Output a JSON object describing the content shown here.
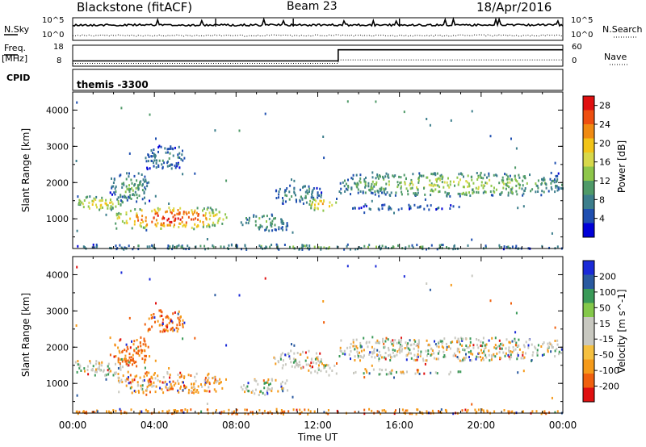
{
  "header": {
    "title": "Blackstone (fitACF)",
    "beam": "Beam 23",
    "date": "18/Apr/2016"
  },
  "summary": {
    "nsky_label": "N.Sky",
    "nsearch_label": "N.Search",
    "freq_label": "Freq.",
    "freq_unit": "[MHz]",
    "nave_label": "Nave",
    "cpid_label": "CPID",
    "cpid_value": "themis -3300",
    "noise_ticks": [
      "10^5",
      "10^0"
    ],
    "freq_ticks": [
      "18",
      "8"
    ],
    "nave_ticks": [
      "60",
      "0"
    ]
  },
  "colors": {
    "power_scale": [
      "#0000d8",
      "#1f4fb0",
      "#3c7e8c",
      "#4f9a68",
      "#8ec64a",
      "#d7d84a",
      "#f2c418",
      "#f08a12",
      "#ee4f10",
      "#e01010"
    ],
    "velocity_scale": [
      "#e01010",
      "#f0600e",
      "#f59a1a",
      "#f5c040",
      "#c8c8c0",
      "#c8c8c0",
      "#84c84a",
      "#3a9a58",
      "#2a5aa0",
      "#1a2ad8"
    ],
    "gray": "#c8c8c0"
  },
  "chart_data": [
    {
      "type": "line",
      "title": "Noise (N.Sky, N.Search)",
      "x": [
        0,
        24
      ],
      "series": [
        {
          "name": "N.Sky",
          "style": "solid",
          "level": "near 10^5 with spikes"
        },
        {
          "name": "N.Search",
          "style": "dotted",
          "level": "near 10^0"
        }
      ]
    },
    {
      "type": "line",
      "title": "Freq. / Nave",
      "series": [
        {
          "name": "Freq. [MHz]",
          "x": [
            0,
            13,
            13,
            24
          ],
          "values": [
            10.5,
            10.5,
            15.8,
            15.8
          ],
          "ylim": [
            8,
            18
          ]
        },
        {
          "name": "Nave",
          "style": "dotted",
          "x": [
            0,
            13,
            13,
            24
          ],
          "values": [
            8,
            8,
            18,
            18
          ],
          "ylim": [
            0,
            60
          ]
        }
      ]
    },
    {
      "type": "heatmap",
      "title": "Power",
      "xlabel": "",
      "ylabel": "Slant Range [km]",
      "xlim": [
        0,
        24
      ],
      "ylim": [
        180,
        4500
      ],
      "yticks": [
        1000,
        2000,
        3000,
        4000
      ],
      "colorbar": {
        "label": "Power [dB]",
        "ticks": [
          4,
          8,
          12,
          16,
          20,
          24,
          28
        ],
        "range": [
          0,
          30
        ]
      },
      "echo_regions": [
        {
          "x": [
            0,
            2.5
          ],
          "y": [
            1250,
            1650
          ],
          "value": 14
        },
        {
          "x": [
            1.8,
            3.8
          ],
          "y": [
            1500,
            2300
          ],
          "value": 8
        },
        {
          "x": [
            2.0,
            7.5
          ],
          "y": [
            750,
            1350
          ],
          "value": 20
        },
        {
          "x": [
            3.5,
            5.5
          ],
          "y": [
            2400,
            3050
          ],
          "value": 6
        },
        {
          "x": [
            8.2,
            10.5
          ],
          "y": [
            700,
            1150
          ],
          "value": 9
        },
        {
          "x": [
            9.8,
            12.2
          ],
          "y": [
            1450,
            1950
          ],
          "value": 7
        },
        {
          "x": [
            11.5,
            12.9
          ],
          "y": [
            1250,
            1600
          ],
          "value": 16
        },
        {
          "x": [
            13.0,
            24.0
          ],
          "y": [
            1650,
            2300
          ],
          "value": 11
        },
        {
          "x": [
            13.5,
            19.0
          ],
          "y": [
            1280,
            1420
          ],
          "value": 5
        },
        {
          "x": [
            0,
            24
          ],
          "y": [
            180,
            320
          ],
          "value": 8
        }
      ]
    },
    {
      "type": "heatmap",
      "title": "Velocity",
      "xlabel": "Time UT",
      "ylabel": "Slant Range [km]",
      "xlim": [
        0,
        24
      ],
      "ylim": [
        180,
        4500
      ],
      "xticks": [
        "00:00",
        "04:00",
        "08:00",
        "12:00",
        "16:00",
        "20:00",
        "00:00"
      ],
      "yticks": [
        1000,
        2000,
        3000,
        4000
      ],
      "colorbar": {
        "label": "Velocity [m s^-1]",
        "ticks": [
          200,
          100,
          50,
          15,
          -15,
          -50,
          -100,
          -200
        ]
      },
      "echo_regions": [
        {
          "x": [
            0,
            2.5
          ],
          "y": [
            1250,
            1650
          ],
          "value": 0
        },
        {
          "x": [
            1.8,
            3.8
          ],
          "y": [
            1500,
            2300
          ],
          "value": -60
        },
        {
          "x": [
            2.0,
            7.5
          ],
          "y": [
            750,
            1350
          ],
          "value": -30
        },
        {
          "x": [
            3.5,
            5.5
          ],
          "y": [
            2400,
            3050
          ],
          "value": -60
        },
        {
          "x": [
            8.2,
            10.5
          ],
          "y": [
            700,
            1150
          ],
          "value": 0
        },
        {
          "x": [
            9.8,
            12.2
          ],
          "y": [
            1450,
            1950
          ],
          "value": 0
        },
        {
          "x": [
            11.5,
            12.9
          ],
          "y": [
            1250,
            1600
          ],
          "value": 0
        },
        {
          "x": [
            13.0,
            24.0
          ],
          "y": [
            1650,
            2300
          ],
          "value": 0
        },
        {
          "x": [
            13.5,
            19.0
          ],
          "y": [
            1280,
            1420
          ],
          "value": 0
        },
        {
          "x": [
            0,
            24
          ],
          "y": [
            180,
            320
          ],
          "value": -40
        }
      ]
    }
  ]
}
